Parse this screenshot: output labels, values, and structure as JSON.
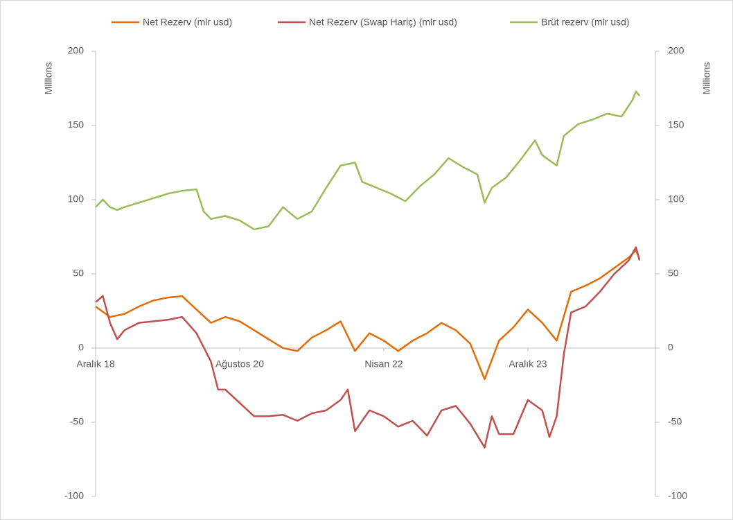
{
  "chart_data": {
    "type": "line",
    "y_label": "Millions",
    "y2_label": "Millions",
    "xlim": [
      0,
      77.7
    ],
    "xticks": [
      {
        "value": 0,
        "label": "Aralık 18"
      },
      {
        "value": 20,
        "label": "Ağustos 20"
      },
      {
        "value": 40,
        "label": "Nisan 22"
      },
      {
        "value": 60,
        "label": "Aralık 23"
      }
    ],
    "ylim": [
      -100,
      200
    ],
    "yticks": [
      -100,
      -50,
      0,
      50,
      100,
      150,
      200
    ],
    "y2lim": [
      -100,
      200
    ],
    "y2ticks": [
      -100,
      -50,
      0,
      50,
      100,
      150,
      200
    ],
    "legend": "top",
    "series": [
      {
        "name": "Net Rezerv (mlr usd)",
        "color": "#e36c09",
        "x": [
          0,
          2,
          4,
          6,
          8,
          10,
          12,
          14,
          16,
          18,
          20,
          22,
          24,
          26,
          28,
          30,
          32,
          34,
          36,
          38,
          40,
          42,
          44,
          46,
          48,
          50,
          52,
          54,
          56,
          58,
          60,
          62,
          64,
          66,
          68,
          70,
          72,
          74,
          75,
          75.5
        ],
        "values": [
          28,
          21,
          23,
          28,
          32,
          34,
          35,
          26,
          17,
          21,
          18,
          12,
          6,
          0,
          -2,
          7,
          12,
          18,
          -2,
          10,
          5,
          -2,
          5,
          10,
          17,
          12,
          3,
          -21,
          5,
          14,
          26,
          17,
          5,
          38,
          42,
          47,
          54,
          61,
          66,
          60
        ]
      },
      {
        "name": "Net Rezerv (Swap Hariç) (mlr usd)",
        "color": "#c0504d",
        "x": [
          0,
          1,
          2,
          3,
          4,
          6,
          8,
          10,
          12,
          14,
          16,
          17,
          18,
          20,
          22,
          24,
          26,
          28,
          30,
          32,
          34,
          35,
          36,
          38,
          40,
          42,
          44,
          46,
          48,
          50,
          52,
          54,
          55,
          56,
          58,
          60,
          62,
          63,
          64,
          65,
          66,
          68,
          70,
          72,
          74,
          75,
          75.5
        ],
        "values": [
          31,
          35,
          17,
          6,
          12,
          17,
          18,
          19,
          21,
          10,
          -9,
          -28,
          -28,
          -37,
          -46,
          -46,
          -45,
          -49,
          -44,
          -42,
          -35,
          -28,
          -56,
          -42,
          -46,
          -53,
          -49,
          -59,
          -42,
          -39,
          -51,
          -67,
          -46,
          -58,
          -58,
          -35,
          -42,
          -60,
          -46,
          -4,
          24,
          28,
          38,
          50,
          59,
          68,
          59
        ]
      },
      {
        "name": "Brüt rezerv (mlr usd)",
        "color": "#9bbb59",
        "x": [
          0,
          1,
          2,
          3,
          4,
          6,
          8,
          10,
          12,
          14,
          15,
          16,
          18,
          20,
          22,
          24,
          26,
          28,
          30,
          32,
          34,
          36,
          37,
          39,
          41,
          43,
          45,
          47,
          49,
          51,
          53,
          54,
          55,
          57,
          59,
          61,
          62,
          64,
          65,
          67,
          69,
          71,
          73,
          74.5,
          75,
          75.5
        ],
        "values": [
          95,
          100,
          95,
          93,
          95,
          98,
          101,
          104,
          106,
          107,
          92,
          87,
          89,
          86,
          80,
          82,
          95,
          87,
          92,
          108,
          123,
          125,
          112,
          108,
          104,
          99,
          109,
          117,
          128,
          122,
          117,
          98,
          108,
          115,
          127,
          140,
          130,
          123,
          143,
          151,
          154,
          158,
          156,
          167,
          173,
          170
        ]
      }
    ]
  }
}
